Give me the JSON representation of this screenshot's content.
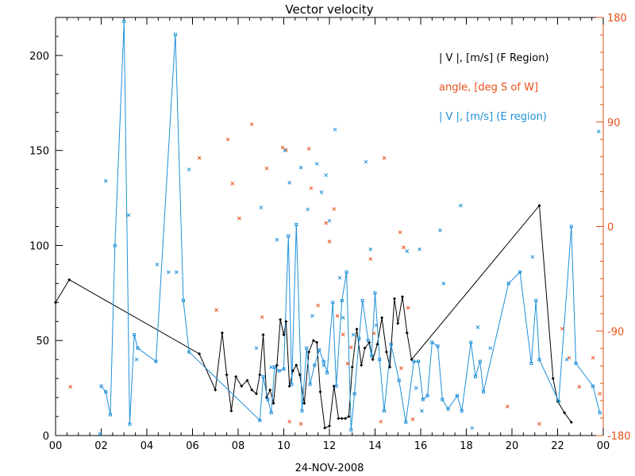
{
  "chart_data": {
    "type": "line",
    "title": "Vector velocity",
    "xlabel": "24-NOV-2008",
    "x_tick_labels": [
      "00",
      "02",
      "04",
      "06",
      "08",
      "10",
      "12",
      "14",
      "16",
      "18",
      "20",
      "22",
      "00"
    ],
    "xlim": [
      0,
      24
    ],
    "ylim": [
      0,
      220
    ],
    "y_tick_labels": [
      "0",
      "50",
      "100",
      "150",
      "200"
    ],
    "y_ticks": [
      0,
      50,
      100,
      150,
      200
    ],
    "y2lim": [
      -180,
      180
    ],
    "y2_tick_labels": [
      "-180",
      "-90",
      "0",
      "90",
      "180"
    ],
    "y2_ticks": [
      -180,
      -90,
      0,
      90,
      180
    ],
    "colors": {
      "f_region": "#000000",
      "angle": "#e8501a",
      "e_region": "#1e90d8"
    },
    "series": [
      {
        "name": "| V |, [m/s] (F Region)",
        "color": "#000000",
        "marker": "diamond",
        "points": [
          [
            0,
            70
          ],
          [
            0.6,
            82
          ],
          [
            6.3,
            43
          ],
          [
            7.0,
            24
          ],
          [
            7.3,
            54
          ],
          [
            7.5,
            32
          ],
          [
            7.7,
            13
          ],
          [
            7.9,
            31
          ],
          [
            8.15,
            26
          ],
          [
            8.4,
            29
          ],
          [
            8.6,
            24
          ],
          [
            8.8,
            22
          ],
          [
            8.95,
            32
          ],
          [
            9.1,
            53
          ],
          [
            9.25,
            20
          ],
          [
            9.4,
            24
          ],
          [
            9.55,
            17
          ],
          [
            9.7,
            37
          ],
          [
            9.85,
            61
          ],
          [
            10.0,
            53
          ],
          [
            10.1,
            60
          ],
          [
            10.25,
            26
          ],
          [
            10.4,
            34
          ],
          [
            10.55,
            37
          ],
          [
            10.7,
            32
          ],
          [
            10.9,
            17
          ],
          [
            11.1,
            44
          ],
          [
            11.3,
            50
          ],
          [
            11.45,
            49
          ],
          [
            11.6,
            23
          ],
          [
            11.8,
            4
          ],
          [
            12.0,
            5
          ],
          [
            12.2,
            26
          ],
          [
            12.4,
            9
          ],
          [
            12.55,
            9
          ],
          [
            12.7,
            9
          ],
          [
            12.85,
            10
          ],
          [
            13.0,
            36
          ],
          [
            13.2,
            56
          ],
          [
            13.4,
            37
          ],
          [
            13.55,
            46
          ],
          [
            13.75,
            49
          ],
          [
            13.9,
            40
          ],
          [
            14.1,
            48
          ],
          [
            14.3,
            62
          ],
          [
            14.5,
            44
          ],
          [
            14.65,
            36
          ],
          [
            14.85,
            72
          ],
          [
            15.0,
            59
          ],
          [
            15.2,
            73
          ],
          [
            15.4,
            54
          ],
          [
            15.6,
            40
          ],
          [
            21.2,
            121
          ],
          [
            21.8,
            30
          ],
          [
            22.0,
            18
          ],
          [
            22.3,
            12
          ],
          [
            22.6,
            7
          ]
        ]
      },
      {
        "name": "| V |, [m/s] (E region)",
        "color": "#1e90d8",
        "marker": "square",
        "points": [
          [
            2.0,
            26
          ],
          [
            2.2,
            23
          ],
          [
            2.4,
            11
          ],
          [
            2.6,
            100
          ],
          [
            3.0,
            218
          ],
          [
            3.25,
            6
          ],
          [
            3.45,
            53
          ],
          [
            3.6,
            46
          ],
          [
            4.4,
            39
          ],
          [
            5.25,
            211
          ],
          [
            5.6,
            71
          ],
          [
            5.85,
            44
          ],
          [
            8.95,
            8
          ],
          [
            9.1,
            31
          ],
          [
            9.3,
            19
          ],
          [
            9.45,
            12
          ],
          [
            9.6,
            36
          ],
          [
            9.8,
            34
          ],
          [
            10.0,
            35
          ],
          [
            10.2,
            105
          ],
          [
            10.35,
            27
          ],
          [
            10.55,
            111
          ],
          [
            10.8,
            13
          ],
          [
            11.0,
            46
          ],
          [
            11.15,
            27
          ],
          [
            11.35,
            37
          ],
          [
            11.55,
            45
          ],
          [
            11.75,
            39
          ],
          [
            11.9,
            33
          ],
          [
            12.15,
            70
          ],
          [
            12.3,
            26
          ],
          [
            12.55,
            71
          ],
          [
            12.75,
            86
          ],
          [
            12.95,
            3
          ],
          [
            13.1,
            22
          ],
          [
            13.3,
            51
          ],
          [
            13.45,
            71
          ],
          [
            13.7,
            50
          ],
          [
            13.85,
            42
          ],
          [
            14.0,
            75
          ],
          [
            14.2,
            40
          ],
          [
            14.4,
            13
          ],
          [
            14.7,
            48
          ],
          [
            15.05,
            29
          ],
          [
            15.35,
            7
          ],
          [
            15.7,
            39
          ],
          [
            15.9,
            39
          ],
          [
            16.1,
            19
          ],
          [
            16.3,
            21
          ],
          [
            16.5,
            49
          ],
          [
            16.75,
            47
          ],
          [
            16.95,
            19
          ],
          [
            17.2,
            14
          ],
          [
            17.6,
            21
          ],
          [
            17.8,
            13
          ],
          [
            18.2,
            49
          ],
          [
            18.4,
            31
          ],
          [
            18.6,
            39
          ],
          [
            18.75,
            23
          ],
          [
            19.85,
            80
          ],
          [
            20.35,
            86
          ],
          [
            20.85,
            38
          ],
          [
            21.05,
            71
          ],
          [
            21.2,
            40
          ],
          [
            22.05,
            18
          ],
          [
            22.6,
            110
          ],
          [
            22.8,
            38
          ],
          [
            23.55,
            26
          ],
          [
            23.85,
            12
          ]
        ]
      },
      {
        "name": "angle, [deg S of W]",
        "color": "#e8501a",
        "marker": "x",
        "axis": "right",
        "points": [
          [
            0.65,
            -138
          ],
          [
            6.3,
            59
          ],
          [
            7.05,
            -72
          ],
          [
            7.55,
            75
          ],
          [
            7.75,
            37
          ],
          [
            8.05,
            7
          ],
          [
            8.6,
            88
          ],
          [
            9.05,
            -78
          ],
          [
            9.25,
            50
          ],
          [
            9.95,
            68
          ],
          [
            10.1,
            66
          ],
          [
            10.25,
            -168
          ],
          [
            10.75,
            -170
          ],
          [
            11.1,
            67
          ],
          [
            11.2,
            33
          ],
          [
            11.5,
            -68
          ],
          [
            11.85,
            3
          ],
          [
            12.0,
            -13
          ],
          [
            12.2,
            15
          ],
          [
            12.35,
            -77
          ],
          [
            12.6,
            -93
          ],
          [
            12.8,
            -118
          ],
          [
            12.95,
            -104
          ],
          [
            13.8,
            -28
          ],
          [
            13.95,
            -92
          ],
          [
            14.25,
            -168
          ],
          [
            14.4,
            59
          ],
          [
            15.1,
            -5
          ],
          [
            15.15,
            -122
          ],
          [
            15.25,
            -18
          ],
          [
            15.45,
            -70
          ],
          [
            15.65,
            -166
          ],
          [
            19.8,
            -155
          ],
          [
            21.2,
            -170
          ],
          [
            22.2,
            -88
          ],
          [
            22.5,
            -113
          ],
          [
            22.95,
            -138
          ],
          [
            23.55,
            -113
          ],
          [
            23.85,
            -144
          ]
        ]
      },
      {
        "name": "| V |, [m/s] (E region) scatter",
        "color": "#1e90d8",
        "marker": "x",
        "scatter": true,
        "points": [
          [
            1.95,
            1
          ],
          [
            2.2,
            134
          ],
          [
            3.2,
            116
          ],
          [
            3.55,
            40
          ],
          [
            4.45,
            90
          ],
          [
            4.95,
            86
          ],
          [
            5.3,
            86
          ],
          [
            5.85,
            140
          ],
          [
            8.8,
            46
          ],
          [
            9.0,
            120
          ],
          [
            9.45,
            36
          ],
          [
            9.7,
            103
          ],
          [
            10.05,
            150
          ],
          [
            10.25,
            133
          ],
          [
            10.75,
            141
          ],
          [
            11.05,
            119
          ],
          [
            11.25,
            63
          ],
          [
            11.45,
            143
          ],
          [
            11.65,
            128
          ],
          [
            11.75,
            37
          ],
          [
            11.85,
            137
          ],
          [
            12.0,
            113
          ],
          [
            12.25,
            161
          ],
          [
            12.45,
            83
          ],
          [
            12.6,
            62
          ],
          [
            13.05,
            53
          ],
          [
            13.6,
            144
          ],
          [
            13.8,
            98
          ],
          [
            14.05,
            58
          ],
          [
            15.4,
            97
          ],
          [
            15.8,
            25
          ],
          [
            15.95,
            98
          ],
          [
            16.05,
            13
          ],
          [
            16.85,
            108
          ],
          [
            17.0,
            80
          ],
          [
            17.75,
            121
          ],
          [
            18.25,
            4
          ],
          [
            18.5,
            57
          ],
          [
            19.05,
            46
          ],
          [
            20.9,
            94
          ],
          [
            22.4,
            40
          ],
          [
            23.8,
            160
          ]
        ]
      }
    ],
    "legend": [
      {
        "label": "| V |, [m/s] (F Region)",
        "color": "#000000"
      },
      {
        "label": "angle, [deg S of W]",
        "color": "#e8501a"
      },
      {
        "label": "| V |, [m/s] (E region)",
        "color": "#1e90d8"
      }
    ],
    "legend_position": "top-right"
  }
}
